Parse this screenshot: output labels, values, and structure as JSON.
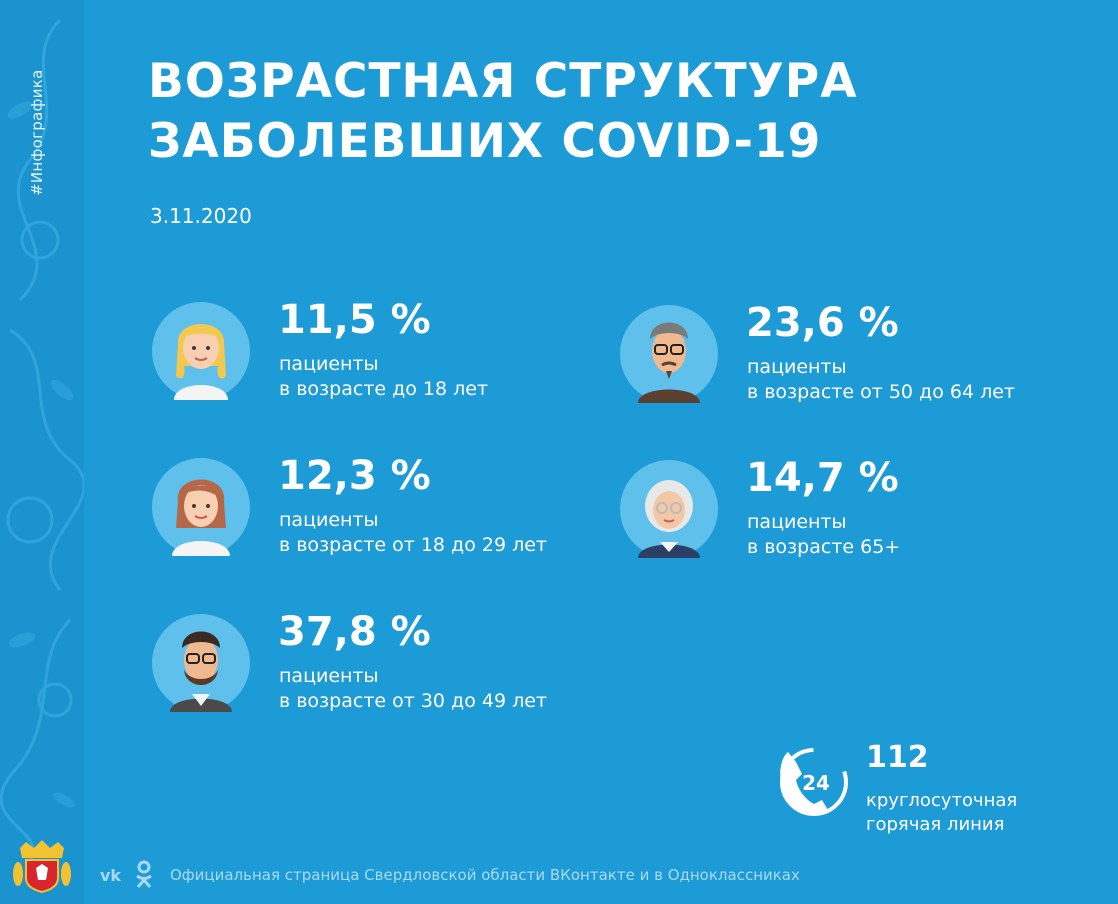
{
  "sidebar": {
    "hashtag": "#Инфографика",
    "emblem_icon": "coat-of-arms-icon"
  },
  "title": {
    "line1": "ВОЗРАСТНАЯ СТРУКТУРА",
    "line2": "ЗАБОЛЕВШИХ COVID-19"
  },
  "date": "3.11.2020",
  "stats": [
    {
      "value": "11,5 %",
      "label": "пациенты",
      "age": "в возрасте до 18 лет",
      "icon": "girl-avatar-icon"
    },
    {
      "value": "12,3 %",
      "label": "пациенты",
      "age": "в возрасте от 18 до 29 лет",
      "icon": "young-woman-avatar-icon"
    },
    {
      "value": "37,8 %",
      "label": "пациенты",
      "age": "в возрасте от 30 до 49 лет",
      "icon": "bearded-man-avatar-icon"
    },
    {
      "value": "23,6 %",
      "label": "пациенты",
      "age": "в возрасте от 50 до 64 лет",
      "icon": "middle-aged-man-avatar-icon"
    },
    {
      "value": "14,7 %",
      "label": "пациенты",
      "age": "в возрасте 65+",
      "icon": "elderly-woman-avatar-icon"
    }
  ],
  "hotline": {
    "badge": "24",
    "number": "112",
    "line1": "круглосуточная",
    "line2": "горячая линия",
    "icon": "phone-24-icon"
  },
  "footer": {
    "vk": "vk",
    "ok_icon": "odnoklassniki-icon",
    "text": "Официальная страница Свердловской области ВКонтакте и в Одноклассниках"
  },
  "colors": {
    "background": "#1d9bd6",
    "avatar_circle": "#5fc0ec",
    "text": "#ffffff"
  }
}
